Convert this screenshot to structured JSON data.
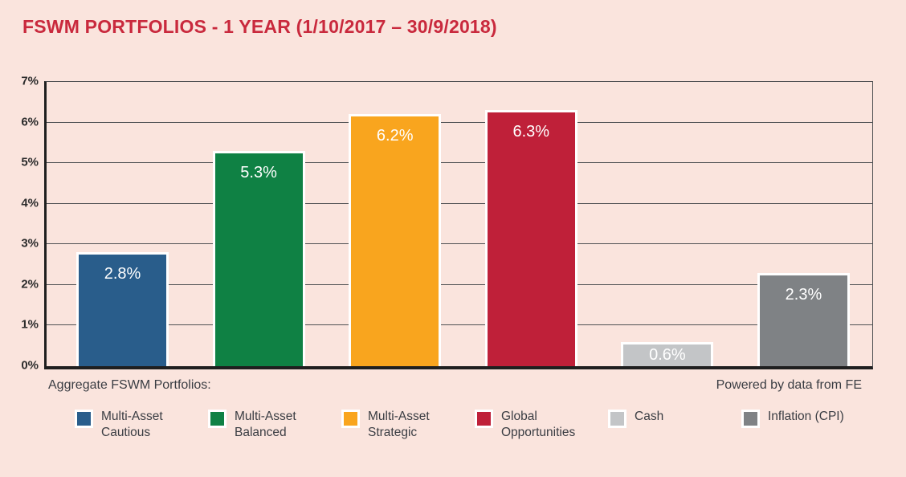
{
  "page": {
    "background_color": "#fae4dd",
    "title": "FSWM PORTFOLIOS - 1 YEAR (1/10/2017 – 30/9/2018)",
    "title_color": "#c9293d",
    "footer_left": "Aggregate FSWM Portfolios:",
    "footer_right": "Powered by data from FE"
  },
  "chart_data": {
    "type": "bar",
    "title": "FSWM PORTFOLIOS - 1 YEAR (1/10/2017 – 30/9/2018)",
    "categories": [
      "Multi-Asset Cautious",
      "Multi-Asset Balanced",
      "Multi-Asset Strategic",
      "Global Opportunities",
      "Cash",
      "Inflation (CPI)"
    ],
    "values": [
      2.8,
      5.3,
      6.2,
      6.3,
      0.6,
      2.3
    ],
    "value_labels": [
      "2.8%",
      "5.3%",
      "6.2%",
      "6.3%",
      "0.6%",
      "2.3%"
    ],
    "bar_colors": [
      "#295d8b",
      "#0f8144",
      "#f9a51e",
      "#bf2039",
      "#c3c5c7",
      "#7f8285"
    ],
    "xlabel": "",
    "ylabel": "",
    "ylim": [
      0,
      7
    ],
    "yticks": [
      "0%",
      "1%",
      "2%",
      "3%",
      "4%",
      "5%",
      "6%",
      "7%"
    ],
    "grid": true,
    "legend_position": "bottom",
    "annotations": [
      "Aggregate FSWM Portfolios:",
      "Powered by data from FE"
    ]
  },
  "legend": {
    "items": [
      {
        "label": "Multi-Asset Cautious",
        "color": "#295d8b"
      },
      {
        "label": "Multi-Asset Balanced",
        "color": "#0f8144"
      },
      {
        "label": "Multi-Asset Strategic",
        "color": "#f9a51e"
      },
      {
        "label": "Global Opportunities",
        "color": "#bf2039"
      },
      {
        "label": "Cash",
        "color": "#c3c5c7"
      },
      {
        "label": "Inflation (CPI)",
        "color": "#7f8285"
      }
    ]
  }
}
